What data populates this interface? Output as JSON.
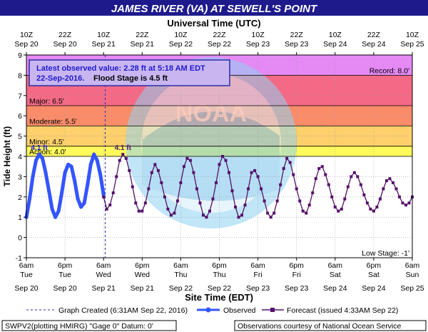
{
  "header": {
    "title": "JAMES RIVER (VA) AT SEWELL'S POINT",
    "top_axis_title": "Universal Time (UTC)"
  },
  "info_box": {
    "line1": "Latest observed value: 2.28 ft at 5:18 AM EDT",
    "line2_date": "22-Sep-2016.",
    "line2_flood": "Flood Stage is 4.5 ft"
  },
  "chart_data": {
    "type": "line",
    "ylabel": "Tide Height (ft)",
    "xlabel": "Site Time (EDT)",
    "ylim": [
      -1,
      9
    ],
    "xlim_hours_from_sep20_6am": [
      0,
      120
    ],
    "y_ticks": [
      "-1",
      "0",
      "1",
      "2",
      "3",
      "4",
      "5",
      "6",
      "7",
      "8",
      "9"
    ],
    "top_ticks": [
      {
        "time": "10Z",
        "date": "Sep 20"
      },
      {
        "time": "22Z",
        "date": "Sep 20"
      },
      {
        "time": "10Z",
        "date": "Sep 21"
      },
      {
        "time": "22Z",
        "date": "Sep 21"
      },
      {
        "time": "10Z",
        "date": "Sep 22"
      },
      {
        "time": "22Z",
        "date": "Sep 22"
      },
      {
        "time": "10Z",
        "date": "Sep 23"
      },
      {
        "time": "22Z",
        "date": "Sep 23"
      },
      {
        "time": "10Z",
        "date": "Sep 24"
      },
      {
        "time": "22Z",
        "date": "Sep 24"
      },
      {
        "time": "10Z",
        "date": "Sep 25"
      }
    ],
    "bottom_ticks": [
      {
        "time": "6am",
        "day": "Tue",
        "date": "Sep 20"
      },
      {
        "time": "6pm",
        "day": "Tue",
        "date": "Sep 20"
      },
      {
        "time": "6am",
        "day": "Wed",
        "date": "Sep 21"
      },
      {
        "time": "6pm",
        "day": "Wed",
        "date": "Sep 21"
      },
      {
        "time": "6am",
        "day": "Thu",
        "date": "Sep 22"
      },
      {
        "time": "6pm",
        "day": "Thu",
        "date": "Sep 22"
      },
      {
        "time": "6am",
        "day": "Fri",
        "date": "Sep 23"
      },
      {
        "time": "6pm",
        "day": "Fri",
        "date": "Sep 23"
      },
      {
        "time": "6am",
        "day": "Sat",
        "date": "Sep 24"
      },
      {
        "time": "6pm",
        "day": "Sat",
        "date": "Sep 24"
      },
      {
        "time": "6am",
        "day": "Sun",
        "date": "Sep 25"
      }
    ],
    "stages": [
      {
        "label": "Record: 8.0'",
        "value": 8.0,
        "color": "#e589f5"
      },
      {
        "label": "Major: 6.5'",
        "value": 6.5,
        "color": "#f46a86"
      },
      {
        "label": "Moderate: 5.5'",
        "value": 5.5,
        "color": "#fb8c6a"
      },
      {
        "label": "Minor: 4.5'",
        "value": 4.5,
        "color": "#fdd06c"
      },
      {
        "label": "Action: 4.0'",
        "value": 4.0,
        "color": "#fffa5c"
      },
      {
        "label": "Low Stage: -1'",
        "value": -1.0,
        "color": "#ffffff"
      }
    ],
    "graph_created_hours": 24.5,
    "observed_peak_label": "4.1 ft",
    "forecast_peak_label": "4.1 ft",
    "series": [
      {
        "name": "Observed",
        "color": "#3355ff",
        "x": [
          0,
          1,
          2,
          3,
          4,
          5,
          6,
          7,
          8,
          9,
          10,
          11,
          12,
          13,
          14,
          15,
          16,
          17,
          18,
          19,
          20,
          21,
          22,
          23,
          24
        ],
        "y": [
          1.0,
          1.9,
          3.0,
          3.8,
          4.1,
          3.9,
          3.2,
          2.3,
          1.4,
          1.0,
          1.3,
          2.2,
          3.2,
          3.6,
          3.5,
          2.8,
          1.9,
          1.5,
          1.7,
          2.6,
          3.6,
          4.1,
          3.8,
          3.1,
          2.1
        ]
      },
      {
        "name": "Forecast (issued 4:33AM Sep 22)",
        "color": "#55116b",
        "x": [
          24,
          25,
          26,
          27,
          28,
          29,
          30,
          31,
          32,
          33,
          34,
          35,
          36,
          37,
          38,
          39,
          40,
          41,
          42,
          43,
          44,
          45,
          46,
          47,
          48,
          49,
          50,
          51,
          52,
          53,
          54,
          55,
          56,
          57,
          58,
          59,
          60,
          61,
          62,
          63,
          64,
          65,
          66,
          67,
          68,
          69,
          70,
          71,
          72,
          73,
          74,
          75,
          76,
          77,
          78,
          79,
          80,
          81,
          82,
          83,
          84,
          85,
          86,
          87,
          88,
          89,
          90,
          91,
          92,
          93,
          94,
          95,
          96,
          97,
          98,
          99,
          100,
          101,
          102,
          103,
          104,
          105,
          106,
          107,
          108,
          109,
          110,
          111,
          112,
          113,
          114,
          115,
          116,
          117,
          118,
          119,
          120
        ],
        "y": [
          2.0,
          1.4,
          1.6,
          2.2,
          3.0,
          3.8,
          4.1,
          3.9,
          3.3,
          2.5,
          1.7,
          1.3,
          1.3,
          1.7,
          2.4,
          3.2,
          3.6,
          3.3,
          2.7,
          2.0,
          1.4,
          1.1,
          1.2,
          1.8,
          2.7,
          3.5,
          3.9,
          3.8,
          3.2,
          2.4,
          1.7,
          1.1,
          1.0,
          1.3,
          1.9,
          2.7,
          3.6,
          4.0,
          3.8,
          3.2,
          2.3,
          1.5,
          1.0,
          1.1,
          1.6,
          2.4,
          3.2,
          3.3,
          3.0,
          2.4,
          1.8,
          1.2,
          1.0,
          1.2,
          1.8,
          2.6,
          3.4,
          3.9,
          3.7,
          3.1,
          2.4,
          1.8,
          1.3,
          1.2,
          1.6,
          2.2,
          2.9,
          3.4,
          3.5,
          3.1,
          2.6,
          2.0,
          1.5,
          1.3,
          1.4,
          1.9,
          2.5,
          3.0,
          3.2,
          3.0,
          2.6,
          2.1,
          1.7,
          1.4,
          1.3,
          1.5,
          1.9,
          2.4,
          2.8,
          2.9,
          2.7,
          2.4,
          2.0,
          1.7,
          1.6,
          1.7,
          2.0
        ]
      }
    ]
  },
  "legend": {
    "graph_created": "Graph Created (6:31AM Sep 22, 2016)",
    "observed": "Observed",
    "forecast": "Forecast (issued 4:33AM Sep 22)"
  },
  "footer": {
    "left": "SWPV2(plotting HMIRG) \"Gage 0\" Datum: 0'",
    "right": "Observations courtesy of National Ocean Service"
  }
}
